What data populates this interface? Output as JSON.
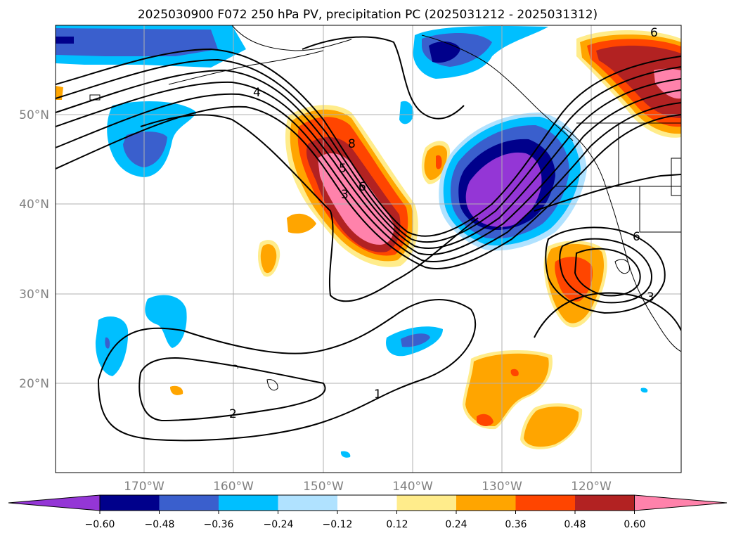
{
  "title": "2025030900 F072 250 hPa PV, precipitation PC (2025031212 - 2025031312)",
  "lat_labels": [
    "50°N",
    "40°N",
    "30°N",
    "20°N"
  ],
  "lon_labels": [
    "170°W",
    "160°W",
    "150°W",
    "140°W",
    "130°W",
    "120°W"
  ],
  "colorbar": {
    "ticks": [
      "−0.60",
      "−0.48",
      "−0.36",
      "−0.24",
      "−0.12",
      "0.12",
      "0.24",
      "0.36",
      "0.48",
      "0.60"
    ],
    "colors": [
      "#9436d6",
      "#00008b",
      "#3a5fcd",
      "#00bfff",
      "#b0e2ff",
      "#ffffff",
      "#ffec8b",
      "#ffa500",
      "#ff4500",
      "#b22222",
      "#ff82ab"
    ]
  },
  "contour_labels": [
    "4",
    "8",
    "5",
    "6",
    "3",
    "2",
    "1",
    "6",
    "6",
    "3"
  ],
  "colors": {
    "pos1": "#ffec8b",
    "pos2": "#ffa500",
    "pos3": "#ff4500",
    "pos4": "#b22222",
    "pos5": "#ff82ab",
    "neg1": "#b0e2ff",
    "neg2": "#00bfff",
    "neg3": "#3a5fcd",
    "neg4": "#00008b",
    "neg5": "#9436d6"
  }
}
